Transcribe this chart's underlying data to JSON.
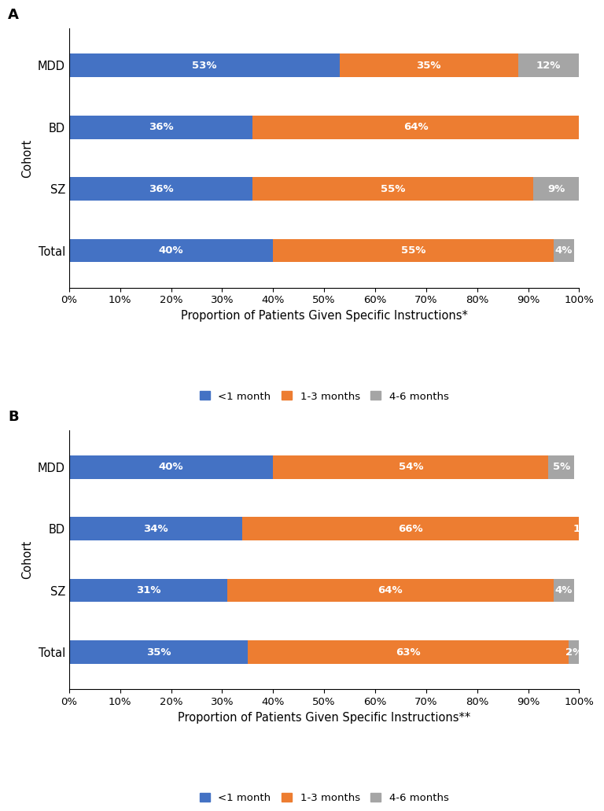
{
  "panel_A": {
    "categories": [
      "MDD",
      "BD",
      "SZ",
      "Total"
    ],
    "less1month": [
      53,
      36,
      36,
      40
    ],
    "one_3months": [
      35,
      64,
      55,
      55
    ],
    "four_6months": [
      12,
      0,
      9,
      4
    ],
    "xlabel": "Proportion of Patients Given Specific Instructions*",
    "ylabel": "Cohort",
    "panel_label": "A"
  },
  "panel_B": {
    "categories": [
      "MDD",
      "BD",
      "SZ",
      "Total"
    ],
    "less1month": [
      40,
      34,
      31,
      35
    ],
    "one_3months": [
      54,
      66,
      64,
      63
    ],
    "four_6months": [
      5,
      1,
      4,
      2
    ],
    "xlabel": "Proportion of Patients Given Specific Instructions**",
    "ylabel": "Cohort",
    "panel_label": "B"
  },
  "colors": {
    "less1month": "#4472C4",
    "one_3months": "#ED7D31",
    "four_6months": "#A5A5A5"
  },
  "legend_labels": [
    "<1 month",
    "1-3 months",
    "4-6 months"
  ],
  "xtick_labels": [
    "0%",
    "10%",
    "20%",
    "30%",
    "40%",
    "50%",
    "60%",
    "70%",
    "80%",
    "90%",
    "100%"
  ],
  "bar_height": 0.38,
  "text_fontsize": 9.5,
  "label_fontsize": 10.5,
  "tick_fontsize": 9.5,
  "legend_fontsize": 9.5,
  "panel_label_fontsize": 13
}
